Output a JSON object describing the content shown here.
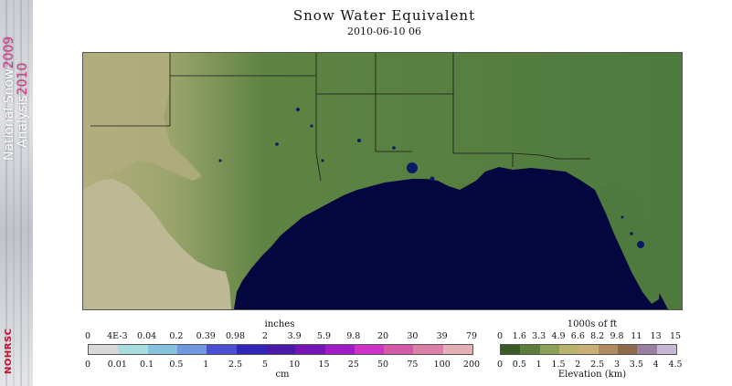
{
  "banner": {
    "line1_prefix": "National Snow",
    "line1_year": "2009",
    "line2_prefix": "Analysis",
    "line2_year": "2010",
    "logo_text": "NOHRSC"
  },
  "title": "Snow Water Equivalent",
  "subtitle": "2010-06-10 06",
  "map": {
    "colors": {
      "ocean": "#03063f",
      "lowland": "#4e7a3e",
      "upland": "#8a9a5b",
      "plateau": "#a8a675",
      "mexico": "#bdb995",
      "border": "#1a1a1a"
    }
  },
  "swe_legend": {
    "top_unit": "inches",
    "top_ticks": [
      "0",
      "4E-3",
      "0.04",
      "0.2",
      "0.39",
      "0.98",
      "2",
      "3.9",
      "5.9",
      "9.8",
      "20",
      "30",
      "39",
      "79"
    ],
    "bottom_ticks": [
      "0",
      "0.01",
      "0.1",
      "0.5",
      "1",
      "2.5",
      "5",
      "10",
      "15",
      "25",
      "50",
      "75",
      "100",
      "200"
    ],
    "bottom_unit": "cm",
    "colors": [
      "#d8d8d8",
      "#a8dde0",
      "#86c2de",
      "#6f97dd",
      "#4a4fd0",
      "#3226b8",
      "#4a19a6",
      "#7416b6",
      "#a01cc4",
      "#cc33c6",
      "#d45aa8",
      "#db7ea8",
      "#e3b0b5"
    ]
  },
  "elev_legend": {
    "top_unit": "1000s of ft",
    "top_ticks": [
      "0",
      "1.6",
      "3.3",
      "4.9",
      "6.6",
      "8.2",
      "9.8",
      "11",
      "13",
      "15"
    ],
    "bottom_ticks": [
      "0",
      "0.5",
      "1",
      "1.5",
      "2",
      "2.5",
      "3",
      "3.5",
      "4",
      "4.5"
    ],
    "bottom_unit": "Elevation (km)",
    "colors": [
      "#3a5a2a",
      "#5c7d3c",
      "#8ca05a",
      "#b8b36c",
      "#c9b078",
      "#b08a60",
      "#8e6a4c",
      "#9a7fa0",
      "#c6b6d4"
    ]
  }
}
